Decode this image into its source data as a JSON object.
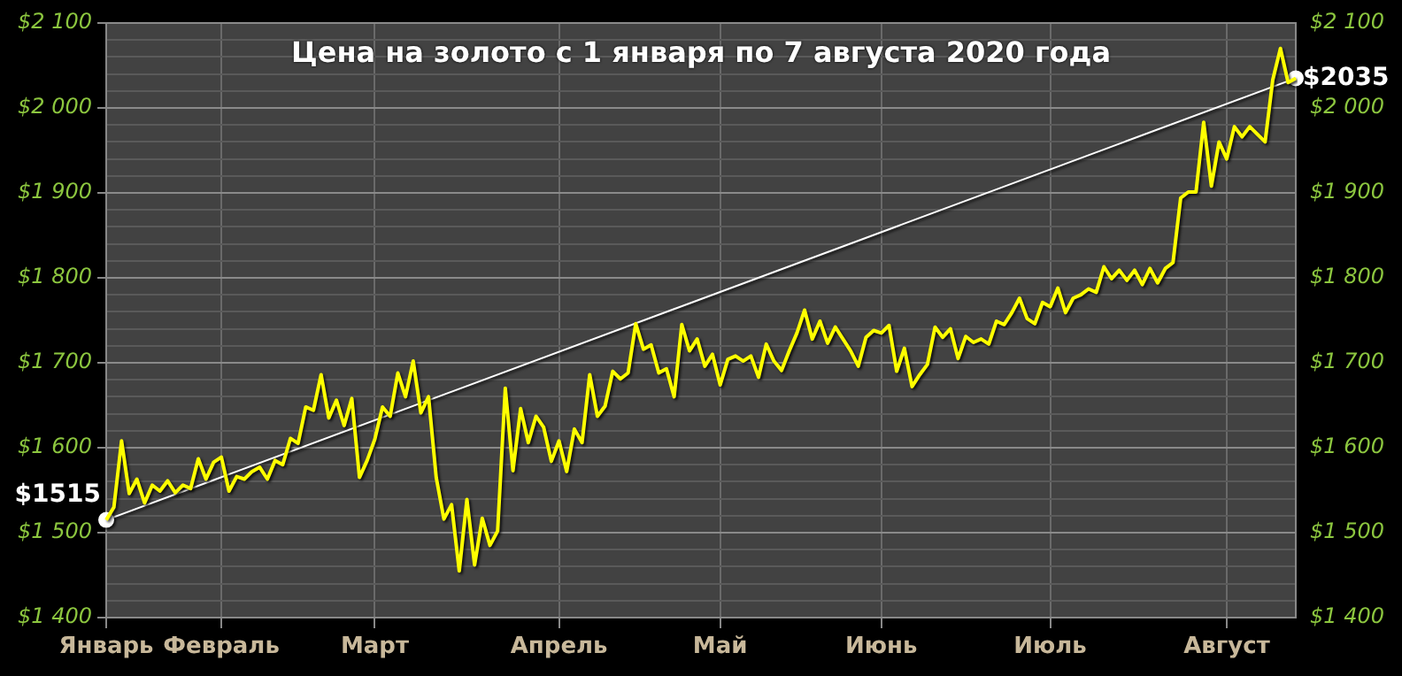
{
  "chart_data": {
    "type": "line",
    "title": "Цена на золото с 1 января по 7 августа 2020 года",
    "categories": [
      "Январь",
      null,
      null,
      null,
      null,
      null,
      null,
      null,
      null,
      null,
      null,
      null,
      null,
      null,
      null,
      "Февраль",
      null,
      null,
      null,
      null,
      null,
      null,
      null,
      null,
      null,
      null,
      null,
      null,
      null,
      null,
      null,
      null,
      null,
      null,
      null,
      "Март",
      null,
      null,
      null,
      null,
      null,
      null,
      null,
      null,
      null,
      null,
      null,
      null,
      null,
      null,
      null,
      null,
      null,
      null,
      null,
      null,
      null,
      null,
      null,
      "Апрель",
      null,
      null,
      null,
      null,
      null,
      null,
      null,
      null,
      null,
      null,
      null,
      null,
      null,
      null,
      null,
      null,
      null,
      null,
      null,
      null,
      "Май",
      null,
      null,
      null,
      null,
      null,
      null,
      null,
      null,
      null,
      null,
      null,
      null,
      null,
      null,
      null,
      null,
      null,
      null,
      null,
      null,
      "Июнь",
      null,
      null,
      null,
      null,
      null,
      null,
      null,
      null,
      null,
      null,
      null,
      null,
      null,
      null,
      null,
      null,
      null,
      null,
      null,
      null,
      null,
      "Июль",
      null,
      null,
      null,
      null,
      null,
      null,
      null,
      null,
      null,
      null,
      null,
      null,
      null,
      null,
      null,
      null,
      null,
      null,
      null,
      null,
      null,
      null,
      "Август",
      null,
      null,
      null,
      null,
      null,
      null,
      null,
      null,
      null
    ],
    "ylim": [
      1400,
      2100
    ],
    "yticks": [
      {
        "value": 1400,
        "label": "$1 400"
      },
      {
        "value": 1420,
        "label": null
      },
      {
        "value": 1440,
        "label": null
      },
      {
        "value": 1460,
        "label": null
      },
      {
        "value": 1480,
        "label": null
      },
      {
        "value": 1500,
        "label": "$1 500"
      },
      {
        "value": 1520,
        "label": null
      },
      {
        "value": 1540,
        "label": null
      },
      {
        "value": 1560,
        "label": null
      },
      {
        "value": 1580,
        "label": null
      },
      {
        "value": 1600,
        "label": "$1 600"
      },
      {
        "value": 1620,
        "label": null
      },
      {
        "value": 1640,
        "label": null
      },
      {
        "value": 1660,
        "label": null
      },
      {
        "value": 1680,
        "label": null
      },
      {
        "value": 1700,
        "label": "$1 700"
      },
      {
        "value": 1720,
        "label": null
      },
      {
        "value": 1740,
        "label": null
      },
      {
        "value": 1760,
        "label": null
      },
      {
        "value": 1780,
        "label": null
      },
      {
        "value": 1800,
        "label": "$1 800"
      },
      {
        "value": 1820,
        "label": null
      },
      {
        "value": 1840,
        "label": null
      },
      {
        "value": 1860,
        "label": null
      },
      {
        "value": 1880,
        "label": null
      },
      {
        "value": 1900,
        "label": "$1 900"
      },
      {
        "value": 1920,
        "label": null
      },
      {
        "value": 1940,
        "label": null
      },
      {
        "value": 1960,
        "label": null
      },
      {
        "value": 1980,
        "label": null
      },
      {
        "value": 2000,
        "label": "$2 000"
      },
      {
        "value": 2020,
        "label": null
      },
      {
        "value": 2040,
        "label": null
      },
      {
        "value": 2060,
        "label": null
      },
      {
        "value": 2080,
        "label": null
      },
      {
        "value": 2100,
        "label": "$2 100"
      }
    ],
    "y2lim": [
      1400,
      2100
    ],
    "y2ticks": [
      {
        "value": 1400,
        "label": "$1 400"
      },
      {
        "value": 1500,
        "label": "$1 500"
      },
      {
        "value": 1600,
        "label": "$1 600"
      },
      {
        "value": 1700,
        "label": "$1 700"
      },
      {
        "value": 1800,
        "label": "$1 800"
      },
      {
        "value": 1900,
        "label": "$1 900"
      },
      {
        "value": 2000,
        "label": "$2 000"
      },
      {
        "value": 2100,
        "label": "$2 100"
      }
    ],
    "grid": true,
    "legend": false,
    "series": [
      {
        "color": "#ffff00",
        "marker": "none",
        "line_style": "solid",
        "values": [
          1515,
          1530,
          1608,
          1546,
          1563,
          1535,
          1556,
          1549,
          1561,
          1547,
          1556,
          1552,
          1587,
          1563,
          1583,
          1589,
          1549,
          1566,
          1563,
          1572,
          1577,
          1563,
          1585,
          1580,
          1611,
          1605,
          1648,
          1644,
          1686,
          1635,
          1656,
          1626,
          1658,
          1565,
          1585,
          1610,
          1648,
          1637,
          1688,
          1660,
          1702,
          1641,
          1660,
          1565,
          1516,
          1533,
          1455,
          1539,
          1462,
          1517,
          1485,
          1502,
          1670,
          1573,
          1646,
          1606,
          1637,
          1624,
          1584,
          1608,
          1572,
          1622,
          1606,
          1686,
          1637,
          1649,
          1690,
          1681,
          1688,
          1746,
          1716,
          1721,
          1688,
          1693,
          1660,
          1745,
          1714,
          1728,
          1696,
          1710,
          1674,
          1704,
          1708,
          1702,
          1708,
          1683,
          1722,
          1702,
          1691,
          1714,
          1735,
          1762,
          1728,
          1749,
          1723,
          1742,
          1728,
          1714,
          1696,
          1730,
          1738,
          1735,
          1744,
          1690,
          1717,
          1672,
          1686,
          1698,
          1742,
          1730,
          1740,
          1705,
          1731,
          1724,
          1728,
          1722,
          1749,
          1745,
          1759,
          1776,
          1752,
          1746,
          1771,
          1766,
          1788,
          1759,
          1776,
          1780,
          1787,
          1783,
          1813,
          1799,
          1809,
          1797,
          1809,
          1792,
          1811,
          1794,
          1811,
          1818,
          1894,
          1901,
          1901,
          1983,
          1908,
          1960,
          1940,
          1978,
          1966,
          1978,
          1969,
          1960,
          2033,
          2070,
          2030,
          2035
        ]
      },
      {
        "type": "line",
        "color": "#ffffff",
        "marker": "circle",
        "line_style": "solid",
        "values": [
          1515,
          null,
          null,
          null,
          null,
          null,
          null,
          null,
          null,
          null,
          null,
          null,
          null,
          null,
          null,
          null,
          null,
          null,
          null,
          null,
          null,
          null,
          null,
          null,
          null,
          null,
          null,
          null,
          null,
          null,
          null,
          null,
          null,
          null,
          null,
          null,
          null,
          null,
          null,
          null,
          null,
          null,
          null,
          null,
          null,
          null,
          null,
          null,
          null,
          null,
          null,
          null,
          null,
          null,
          null,
          null,
          null,
          null,
          null,
          null,
          null,
          null,
          null,
          null,
          null,
          null,
          null,
          null,
          null,
          null,
          null,
          null,
          null,
          null,
          null,
          null,
          null,
          null,
          null,
          null,
          null,
          null,
          null,
          null,
          null,
          null,
          null,
          null,
          null,
          null,
          null,
          null,
          null,
          null,
          null,
          null,
          null,
          null,
          null,
          null,
          null,
          null,
          null,
          null,
          null,
          null,
          null,
          null,
          null,
          null,
          null,
          null,
          null,
          null,
          null,
          null,
          null,
          null,
          null,
          null,
          null,
          null,
          null,
          null,
          null,
          null,
          null,
          null,
          null,
          null,
          null,
          null,
          null,
          null,
          null,
          null,
          null,
          null,
          null,
          null,
          null,
          null,
          null,
          null,
          null,
          null,
          null,
          null,
          null,
          null,
          null,
          null,
          null,
          null,
          null,
          2035
        ],
        "value_labels": [
          "$1515",
          null,
          null,
          null,
          null,
          null,
          null,
          null,
          null,
          null,
          null,
          null,
          null,
          null,
          null,
          null,
          null,
          null,
          null,
          null,
          null,
          null,
          null,
          null,
          null,
          null,
          null,
          null,
          null,
          null,
          null,
          null,
          null,
          null,
          null,
          null,
          null,
          null,
          null,
          null,
          null,
          null,
          null,
          null,
          null,
          null,
          null,
          null,
          null,
          null,
          null,
          null,
          null,
          null,
          null,
          null,
          null,
          null,
          null,
          null,
          null,
          null,
          null,
          null,
          null,
          null,
          null,
          null,
          null,
          null,
          null,
          null,
          null,
          null,
          null,
          null,
          null,
          null,
          null,
          null,
          null,
          null,
          null,
          null,
          null,
          null,
          null,
          null,
          null,
          null,
          null,
          null,
          null,
          null,
          null,
          null,
          null,
          null,
          null,
          null,
          null,
          null,
          null,
          null,
          null,
          null,
          null,
          null,
          null,
          null,
          null,
          null,
          null,
          null,
          null,
          null,
          null,
          null,
          null,
          null,
          null,
          null,
          null,
          null,
          null,
          null,
          null,
          null,
          null,
          null,
          null,
          null,
          null,
          null,
          null,
          null,
          null,
          null,
          null,
          null,
          null,
          null,
          null,
          null,
          null,
          null,
          null,
          null,
          null,
          null,
          null,
          null,
          null,
          null,
          null,
          "$2035"
        ]
      }
    ]
  }
}
